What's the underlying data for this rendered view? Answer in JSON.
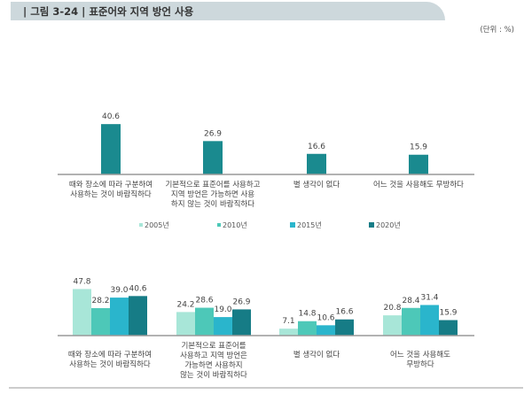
{
  "title": "| 그림 3-24 | 표준어와 지역 방언 사용",
  "unit": "(단위 : %)",
  "colors": {
    "single": "#1a8a8f",
    "2005년": "#a8e6d8",
    "2010년": "#4dc8b8",
    "2015년": "#2ab5cc",
    "2020년": "#167c86",
    "axis": "#999999"
  },
  "chart_data": [
    {
      "type": "bar",
      "categories": [
        [
          "때와 장소에 따라 구분하여",
          "사용하는 것이 바람직하다"
        ],
        [
          "기본적으로 표준어를 사용하고",
          "지역 방언은 가능하면 사용",
          "하지 않는 것이 바람직하다"
        ],
        [
          "별 생각이 없다"
        ],
        [
          "어느 것을 사용해도 무방하다"
        ]
      ],
      "values": [
        40.6,
        26.9,
        16.6,
        15.9
      ]
    },
    {
      "type": "bar",
      "categories": [
        [
          "때와 장소에 따라 구분하여",
          "사용하는 것이 바람직하다"
        ],
        [
          "기본적으로 표준어를",
          "사용하고 지역 방언은",
          "가능하면 사용하지",
          "않는 것이 바람직하다"
        ],
        [
          "별 생각이 없다"
        ],
        [
          "어느 것을 사용해도",
          "무방하다"
        ]
      ],
      "legend": [
        "2005년",
        "2010년",
        "2015년",
        "2020년"
      ],
      "legend_placement": "top",
      "series": [
        {
          "name": "2005년",
          "values": [
            47.8,
            24.2,
            7.1,
            20.8
          ]
        },
        {
          "name": "2010년",
          "values": [
            28.2,
            28.6,
            14.8,
            28.4
          ]
        },
        {
          "name": "2015년",
          "values": [
            39.0,
            19.0,
            10.6,
            31.4
          ]
        },
        {
          "name": "2020년",
          "values": [
            40.6,
            26.9,
            16.6,
            15.9
          ]
        }
      ]
    }
  ]
}
